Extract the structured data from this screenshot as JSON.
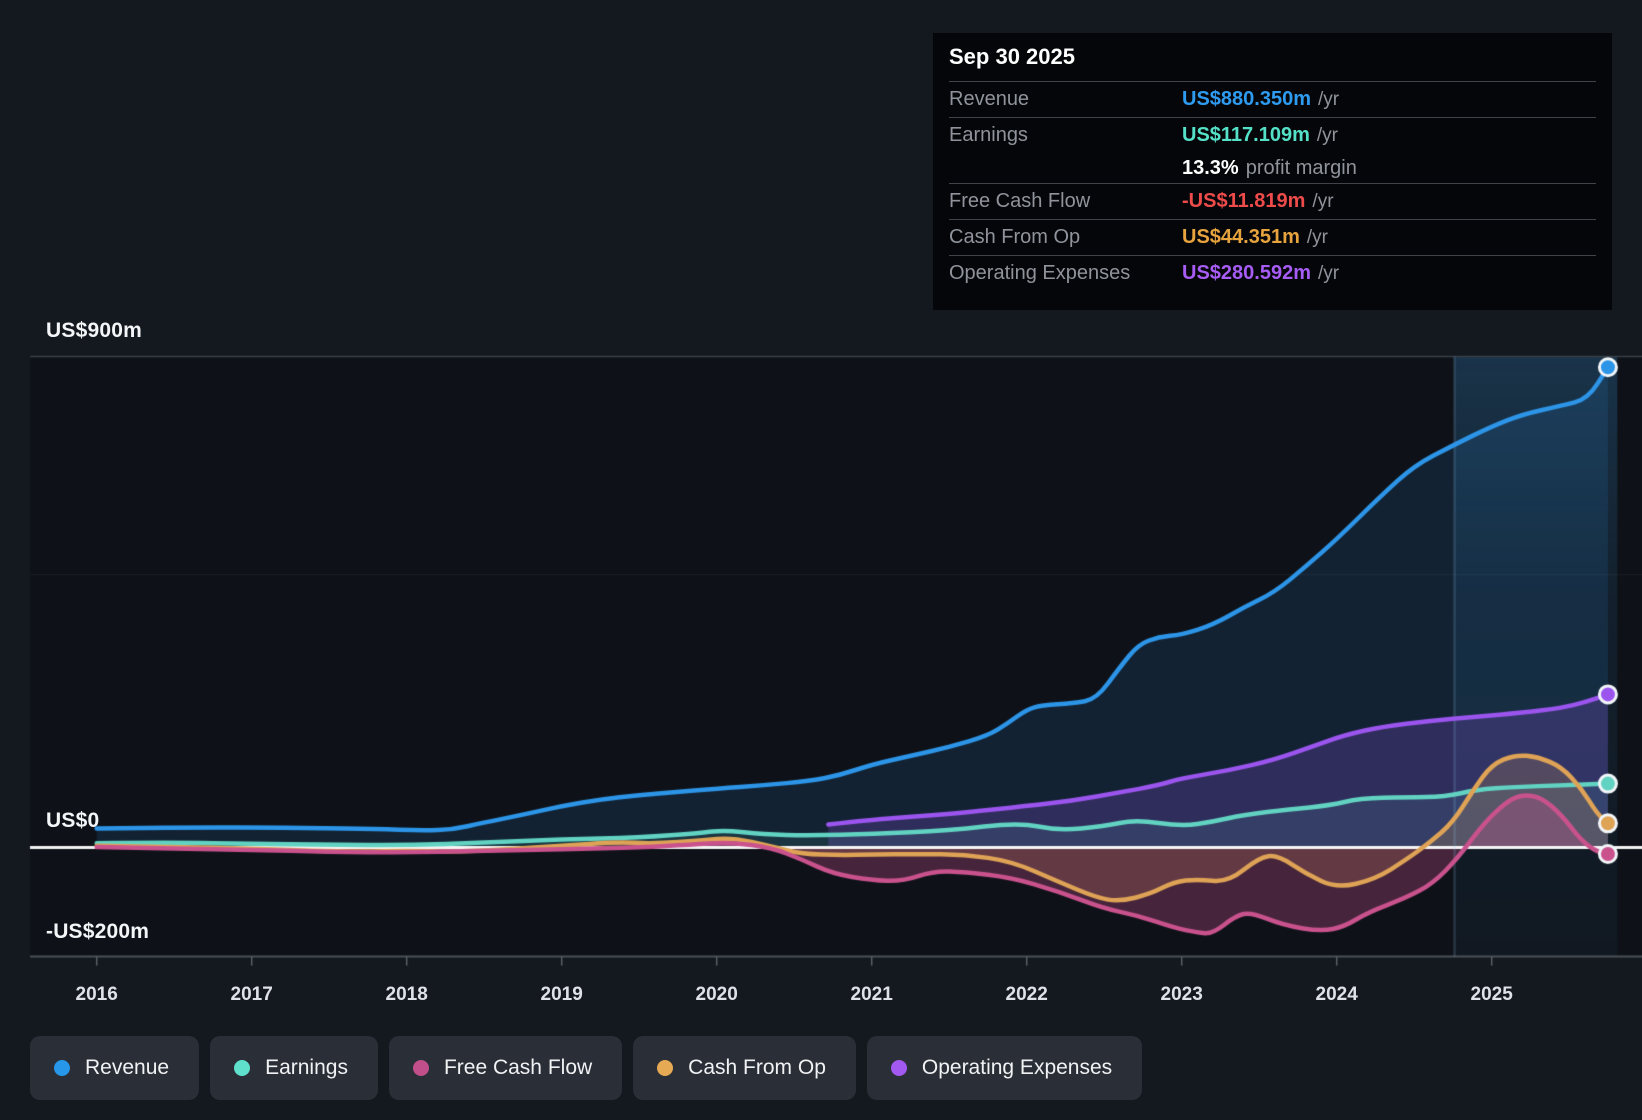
{
  "tooltip": {
    "date": "Sep 30 2025",
    "rows": [
      {
        "label": "Revenue",
        "value": "US$880.350m",
        "suffix": "/yr",
        "color": "#2e9bf0"
      },
      {
        "label": "Earnings",
        "value": "US$117.109m",
        "suffix": "/yr",
        "color": "#55e0c8",
        "margin_value": "13.3%",
        "margin_label": "profit margin"
      },
      {
        "label": "Free Cash Flow",
        "value": "-US$11.819m",
        "suffix": "/yr",
        "color": "#ee4b4b"
      },
      {
        "label": "Cash From Op",
        "value": "US$44.351m",
        "suffix": "/yr",
        "color": "#e6a33e"
      },
      {
        "label": "Operating Expenses",
        "value": "US$280.592m",
        "suffix": "/yr",
        "color": "#a65cf5"
      }
    ]
  },
  "y_axis": {
    "label_900": "US$900m",
    "label_0": "US$0",
    "label_neg200": "-US$200m"
  },
  "x_axis": {
    "years": [
      "2016",
      "2017",
      "2018",
      "2019",
      "2020",
      "2021",
      "2022",
      "2023",
      "2024",
      "2025"
    ]
  },
  "legend": [
    {
      "label": "Revenue",
      "color": "#2797ea"
    },
    {
      "label": "Earnings",
      "color": "#5fe0cc"
    },
    {
      "label": "Free Cash Flow",
      "color": "#c04f8c"
    },
    {
      "label": "Cash From Op",
      "color": "#e6aa55"
    },
    {
      "label": "Operating Expenses",
      "color": "#a259ef"
    }
  ],
  "chart_data": {
    "type": "area",
    "x_unit": "year",
    "x_range": [
      2016,
      2025.81
    ],
    "y_unit": "US$ millions",
    "y_gridlines": [
      {
        "value": 900,
        "label": "US$900m"
      },
      {
        "value": 500,
        "label": ""
      },
      {
        "value": 0,
        "label": "US$0"
      },
      {
        "value": -200,
        "label": "-US$200m"
      }
    ],
    "highlight_band": {
      "start_year": 2024.76,
      "end_year": 2025.81
    },
    "series": [
      {
        "name": "Revenue",
        "color": "#2d95e8",
        "points": [
          [
            2016,
            35
          ],
          [
            2016.3,
            36
          ],
          [
            2016.6,
            36.5
          ],
          [
            2017,
            37
          ],
          [
            2017.4,
            35.5
          ],
          [
            2017.8,
            34
          ],
          [
            2018.1,
            31
          ],
          [
            2018.3,
            33
          ],
          [
            2018.5,
            46
          ],
          [
            2018.75,
            60
          ],
          [
            2019,
            76
          ],
          [
            2019.25,
            88
          ],
          [
            2019.5,
            96
          ],
          [
            2019.75,
            102
          ],
          [
            2020,
            108
          ],
          [
            2020.3,
            114
          ],
          [
            2020.6,
            122
          ],
          [
            2020.8,
            133
          ],
          [
            2021,
            152
          ],
          [
            2021.25,
            168
          ],
          [
            2021.5,
            184
          ],
          [
            2021.75,
            205
          ],
          [
            2021.88,
            228
          ],
          [
            2022,
            253
          ],
          [
            2022.1,
            261
          ],
          [
            2022.3,
            264
          ],
          [
            2022.45,
            272
          ],
          [
            2022.6,
            330
          ],
          [
            2022.72,
            372
          ],
          [
            2022.85,
            386
          ],
          [
            2023,
            390
          ],
          [
            2023.2,
            408
          ],
          [
            2023.4,
            440
          ],
          [
            2023.6,
            468
          ],
          [
            2023.8,
            515
          ],
          [
            2024,
            565
          ],
          [
            2024.28,
            643
          ],
          [
            2024.5,
            700
          ],
          [
            2024.75,
            737
          ],
          [
            2025,
            772
          ],
          [
            2025.2,
            794
          ],
          [
            2025.45,
            810
          ],
          [
            2025.62,
            822
          ],
          [
            2025.75,
            880.35
          ]
        ]
      },
      {
        "name": "Operating Expenses",
        "color": "#9b55ee",
        "points": [
          [
            2020.72,
            42
          ],
          [
            2021,
            51
          ],
          [
            2021.3,
            57
          ],
          [
            2021.6,
            64
          ],
          [
            2022,
            76
          ],
          [
            2022.3,
            86
          ],
          [
            2022.6,
            101
          ],
          [
            2022.85,
            114
          ],
          [
            2023,
            127
          ],
          [
            2023.3,
            141
          ],
          [
            2023.6,
            161
          ],
          [
            2023.85,
            186
          ],
          [
            2024.05,
            206
          ],
          [
            2024.3,
            222
          ],
          [
            2024.6,
            232
          ],
          [
            2024.9,
            240
          ],
          [
            2025.2,
            247
          ],
          [
            2025.45,
            256
          ],
          [
            2025.6,
            266
          ],
          [
            2025.75,
            280.592
          ]
        ]
      },
      {
        "name": "Earnings",
        "color": "#62d3c2",
        "points": [
          [
            2016,
            8
          ],
          [
            2016.5,
            9
          ],
          [
            2017,
            7
          ],
          [
            2017.5,
            5
          ],
          [
            2018,
            4
          ],
          [
            2018.5,
            9
          ],
          [
            2019,
            15
          ],
          [
            2019.5,
            18
          ],
          [
            2019.9,
            27
          ],
          [
            2020.05,
            32
          ],
          [
            2020.3,
            24
          ],
          [
            2020.6,
            22
          ],
          [
            2021,
            25
          ],
          [
            2021.5,
            31
          ],
          [
            2021.95,
            46
          ],
          [
            2022.2,
            31
          ],
          [
            2022.5,
            39
          ],
          [
            2022.7,
            51
          ],
          [
            2023,
            39
          ],
          [
            2023.2,
            47
          ],
          [
            2023.4,
            60
          ],
          [
            2023.7,
            70
          ],
          [
            2023.95,
            77
          ],
          [
            2024.15,
            90
          ],
          [
            2024.45,
            92
          ],
          [
            2024.7,
            93
          ],
          [
            2024.9,
            106
          ],
          [
            2025.15,
            111
          ],
          [
            2025.45,
            114
          ],
          [
            2025.75,
            117.109
          ]
        ]
      },
      {
        "name": "Cash From Op",
        "color": "#dfa356",
        "points": [
          [
            2016,
            3
          ],
          [
            2016.5,
            1
          ],
          [
            2017,
            -2
          ],
          [
            2017.4,
            -6
          ],
          [
            2017.7,
            -8
          ],
          [
            2018,
            -6
          ],
          [
            2018.3,
            -8
          ],
          [
            2018.6,
            -4
          ],
          [
            2019,
            3
          ],
          [
            2019.35,
            10
          ],
          [
            2019.6,
            7
          ],
          [
            2019.9,
            13
          ],
          [
            2020.1,
            18
          ],
          [
            2020.35,
            2
          ],
          [
            2020.55,
            -12
          ],
          [
            2020.8,
            -14
          ],
          [
            2021,
            -13
          ],
          [
            2021.3,
            -12
          ],
          [
            2021.6,
            -13
          ],
          [
            2021.9,
            -25
          ],
          [
            2022.2,
            -62
          ],
          [
            2022.45,
            -92
          ],
          [
            2022.6,
            -99
          ],
          [
            2022.8,
            -85
          ],
          [
            2022.95,
            -63
          ],
          [
            2023.1,
            -58
          ],
          [
            2023.3,
            -64
          ],
          [
            2023.5,
            -18
          ],
          [
            2023.62,
            -14
          ],
          [
            2023.8,
            -48
          ],
          [
            2024,
            -75
          ],
          [
            2024.25,
            -58
          ],
          [
            2024.45,
            -22
          ],
          [
            2024.6,
            9
          ],
          [
            2024.75,
            46
          ],
          [
            2024.88,
            105
          ],
          [
            2025,
            152
          ],
          [
            2025.15,
            170
          ],
          [
            2025.3,
            166
          ],
          [
            2025.45,
            148
          ],
          [
            2025.58,
            108
          ],
          [
            2025.68,
            62
          ],
          [
            2025.75,
            44.351
          ]
        ]
      },
      {
        "name": "Free Cash Flow",
        "color": "#c9528d",
        "points": [
          [
            2016,
            1
          ],
          [
            2016.5,
            -2
          ],
          [
            2017,
            -4
          ],
          [
            2017.5,
            -8
          ],
          [
            2018,
            -9
          ],
          [
            2018.4,
            -7
          ],
          [
            2018.8,
            -4
          ],
          [
            2019.2,
            -2
          ],
          [
            2019.6,
            1
          ],
          [
            2019.9,
            7
          ],
          [
            2020.1,
            9
          ],
          [
            2020.35,
            0
          ],
          [
            2020.55,
            -22
          ],
          [
            2020.75,
            -48
          ],
          [
            2021,
            -60
          ],
          [
            2021.2,
            -62
          ],
          [
            2021.4,
            -43
          ],
          [
            2021.6,
            -45
          ],
          [
            2021.9,
            -55
          ],
          [
            2022.2,
            -80
          ],
          [
            2022.5,
            -112
          ],
          [
            2022.72,
            -125
          ],
          [
            2022.95,
            -147
          ],
          [
            2023.1,
            -156
          ],
          [
            2023.2,
            -158
          ],
          [
            2023.35,
            -125
          ],
          [
            2023.45,
            -119
          ],
          [
            2023.65,
            -142
          ],
          [
            2023.9,
            -154
          ],
          [
            2024.05,
            -145
          ],
          [
            2024.2,
            -119
          ],
          [
            2024.45,
            -92
          ],
          [
            2024.62,
            -66
          ],
          [
            2024.78,
            -20
          ],
          [
            2024.95,
            45
          ],
          [
            2025.1,
            85
          ],
          [
            2025.2,
            97
          ],
          [
            2025.32,
            92
          ],
          [
            2025.45,
            60
          ],
          [
            2025.58,
            12
          ],
          [
            2025.68,
            -8
          ],
          [
            2025.75,
            -11.819
          ]
        ]
      }
    ]
  }
}
